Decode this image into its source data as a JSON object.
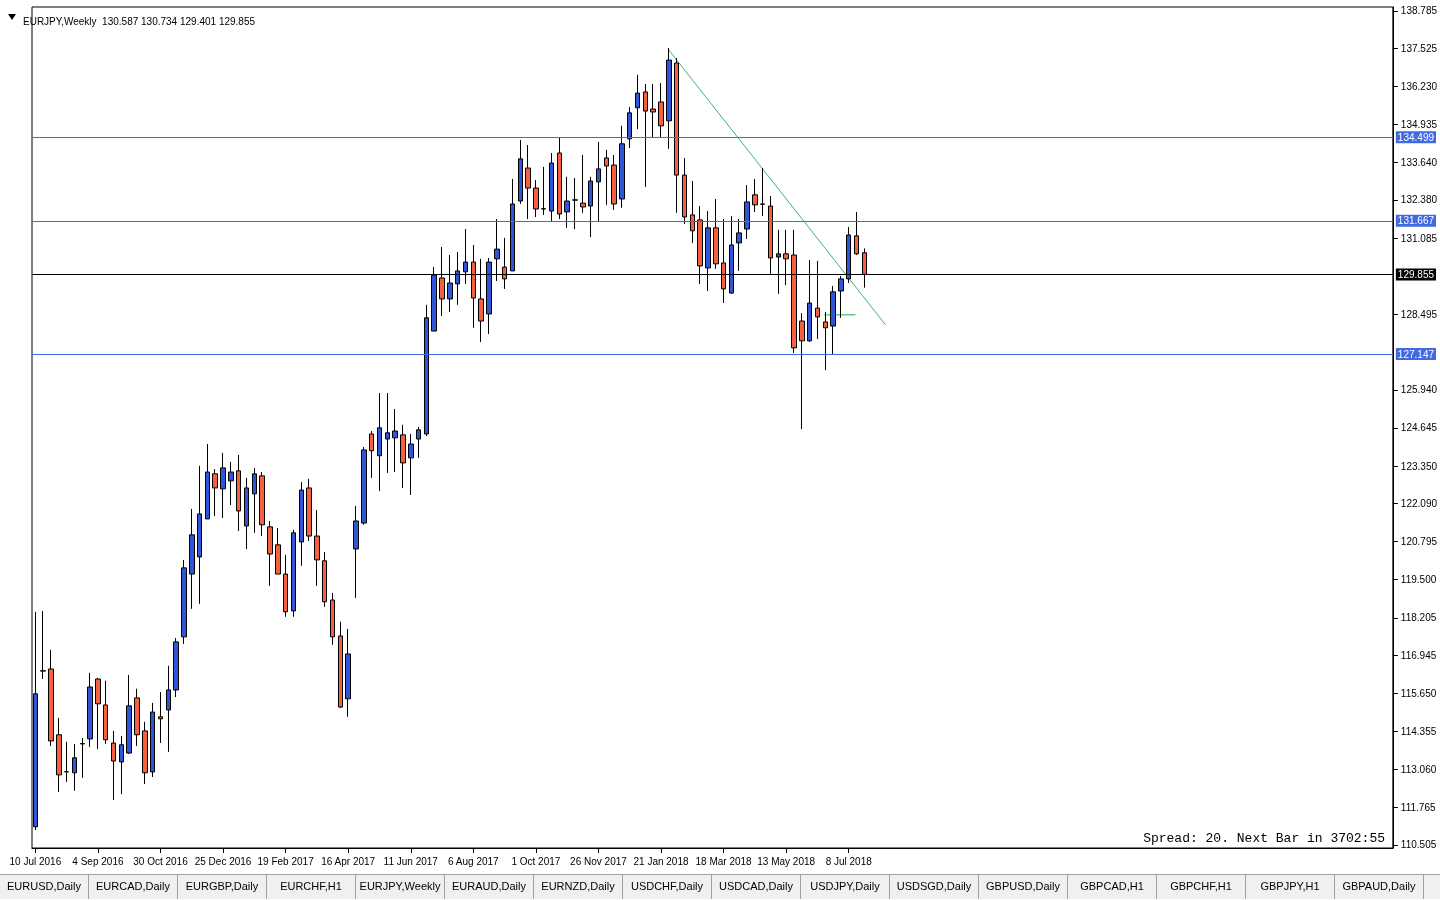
{
  "chart_data": {
    "type": "candlestick",
    "title": "EURJPY,Weekly  130.587 130.734 129.401 129.855",
    "series": [
      {
        "x": [
          "2016-07-10",
          "2016-07-17",
          "2016-07-24",
          "2016-07-31",
          "2016-08-07",
          "2016-08-14",
          "2016-08-21",
          "2016-08-28",
          "2016-09-04",
          "2016-09-11",
          "2016-09-18",
          "2016-09-25",
          "2016-10-02",
          "2016-10-09",
          "2016-10-16",
          "2016-10-23",
          "2016-10-30",
          "2016-11-06",
          "2016-11-13",
          "2016-11-20",
          "2016-11-27",
          "2016-12-04",
          "2016-12-11",
          "2016-12-18",
          "2016-12-25",
          "2017-01-01",
          "2017-01-08",
          "2017-01-15",
          "2017-01-22",
          "2017-01-29",
          "2017-02-05",
          "2017-02-12",
          "2017-02-19",
          "2017-02-26",
          "2017-03-05",
          "2017-03-12",
          "2017-03-19",
          "2017-03-26",
          "2017-04-02",
          "2017-04-09",
          "2017-04-16",
          "2017-04-23",
          "2017-04-30",
          "2017-05-07",
          "2017-05-14",
          "2017-05-21",
          "2017-05-28",
          "2017-06-04",
          "2017-06-11",
          "2017-06-18",
          "2017-06-25",
          "2017-07-02",
          "2017-07-09",
          "2017-07-16",
          "2017-07-23",
          "2017-07-30",
          "2017-08-06",
          "2017-08-13",
          "2017-08-20",
          "2017-08-27",
          "2017-09-03",
          "2017-09-10",
          "2017-09-17",
          "2017-09-24",
          "2017-10-01",
          "2017-10-08",
          "2017-10-15",
          "2017-10-22",
          "2017-10-29",
          "2017-11-05",
          "2017-11-12",
          "2017-11-19",
          "2017-11-26",
          "2017-12-03",
          "2017-12-10",
          "2017-12-17",
          "2017-12-24",
          "2017-12-31",
          "2018-01-07",
          "2018-01-14",
          "2018-01-21",
          "2018-01-28",
          "2018-02-04",
          "2018-02-11",
          "2018-02-18",
          "2018-02-25",
          "2018-03-04",
          "2018-03-11",
          "2018-03-18",
          "2018-03-25",
          "2018-04-01",
          "2018-04-08",
          "2018-04-15",
          "2018-04-22",
          "2018-04-29",
          "2018-05-06",
          "2018-05-13",
          "2018-05-20",
          "2018-05-27",
          "2018-06-03",
          "2018-06-10",
          "2018-06-17",
          "2018-06-24",
          "2018-07-01",
          "2018-07-08",
          "2018-07-15",
          "2018-07-22"
        ],
        "ohlc": [
          [
            111.12,
            118.41,
            111.01,
            115.63
          ],
          [
            116.4,
            118.44,
            116.13,
            116.41
          ],
          [
            116.47,
            117.12,
            113.86,
            114.03
          ],
          [
            114.24,
            114.81,
            112.3,
            112.88
          ],
          [
            112.98,
            114.0,
            112.64,
            112.99
          ],
          [
            112.95,
            113.93,
            112.34,
            113.46
          ],
          [
            113.93,
            114.13,
            112.78,
            113.94
          ],
          [
            114.1,
            116.34,
            113.83,
            115.86
          ],
          [
            116.13,
            116.17,
            113.76,
            115.29
          ],
          [
            115.25,
            116.07,
            113.93,
            114.07
          ],
          [
            113.96,
            114.37,
            112.03,
            113.35
          ],
          [
            113.32,
            114.2,
            112.23,
            113.9
          ],
          [
            113.62,
            116.27,
            113.59,
            115.22
          ],
          [
            115.49,
            115.8,
            113.86,
            114.24
          ],
          [
            114.37,
            114.68,
            112.57,
            112.95
          ],
          [
            112.98,
            115.32,
            112.81,
            115.01
          ],
          [
            114.85,
            115.69,
            113.96,
            114.78
          ],
          [
            115.08,
            116.58,
            113.66,
            115.76
          ],
          [
            115.76,
            117.52,
            115.52,
            117.39
          ],
          [
            117.56,
            120.17,
            117.32,
            119.9
          ],
          [
            119.69,
            121.9,
            118.51,
            121.02
          ],
          [
            120.27,
            123.36,
            118.68,
            121.73
          ],
          [
            121.56,
            124.1,
            121.56,
            123.15
          ],
          [
            123.09,
            123.25,
            121.66,
            122.61
          ],
          [
            122.58,
            123.8,
            121.59,
            123.29
          ],
          [
            122.85,
            123.49,
            122.03,
            123.15
          ],
          [
            123.19,
            123.73,
            121.15,
            121.83
          ],
          [
            121.32,
            122.95,
            120.54,
            122.61
          ],
          [
            122.41,
            123.29,
            121.09,
            123.09
          ],
          [
            123.02,
            123.15,
            120.98,
            121.36
          ],
          [
            121.29,
            121.49,
            119.29,
            120.37
          ],
          [
            120.68,
            121.25,
            119.69,
            119.69
          ],
          [
            119.69,
            120.34,
            118.24,
            118.41
          ],
          [
            118.44,
            121.19,
            118.24,
            121.09
          ],
          [
            120.78,
            122.81,
            119.97,
            122.54
          ],
          [
            122.61,
            122.92,
            120.81,
            120.98
          ],
          [
            120.98,
            121.86,
            119.29,
            120.17
          ],
          [
            120.14,
            120.44,
            118.58,
            118.75
          ],
          [
            118.81,
            119.05,
            117.29,
            117.56
          ],
          [
            117.59,
            118.07,
            115.15,
            115.18
          ],
          [
            115.46,
            117.83,
            114.85,
            116.98
          ],
          [
            120.54,
            122.0,
            118.88,
            121.49
          ],
          [
            121.42,
            124.0,
            121.36,
            123.9
          ],
          [
            124.44,
            124.54,
            122.95,
            123.87
          ],
          [
            123.7,
            125.83,
            122.51,
            124.65
          ],
          [
            124.27,
            125.83,
            123.12,
            124.48
          ],
          [
            124.31,
            125.29,
            123.15,
            124.54
          ],
          [
            124.41,
            124.75,
            122.61,
            123.46
          ],
          [
            123.63,
            124.44,
            122.37,
            124.1
          ],
          [
            124.27,
            124.68,
            123.63,
            124.58
          ],
          [
            124.44,
            128.82,
            124.37,
            128.38
          ],
          [
            127.93,
            130.1,
            127.93,
            129.83
          ],
          [
            129.73,
            130.78,
            128.44,
            129.02
          ],
          [
            129.02,
            130.51,
            128.58,
            129.56
          ],
          [
            129.53,
            130.61,
            128.82,
            129.97
          ],
          [
            129.94,
            131.39,
            129.53,
            130.27
          ],
          [
            130.27,
            130.85,
            128.04,
            129.05
          ],
          [
            129.02,
            130.38,
            127.56,
            128.27
          ],
          [
            128.51,
            130.41,
            127.83,
            130.27
          ],
          [
            130.38,
            131.73,
            129.63,
            130.71
          ],
          [
            130.1,
            131.09,
            129.36,
            129.7
          ],
          [
            129.97,
            133.09,
            129.97,
            132.24
          ],
          [
            132.34,
            134.41,
            132.24,
            133.77
          ],
          [
            133.46,
            134.24,
            131.73,
            132.78
          ],
          [
            132.78,
            133.05,
            131.8,
            132.07
          ],
          [
            132.07,
            133.5,
            131.87,
            132.08
          ],
          [
            132.0,
            133.97,
            131.66,
            133.63
          ],
          [
            133.97,
            134.48,
            131.73,
            131.9
          ],
          [
            131.97,
            133.16,
            131.43,
            132.34
          ],
          [
            132.38,
            133.12,
            131.39,
            132.37
          ],
          [
            132.27,
            133.9,
            131.94,
            132.14
          ],
          [
            132.17,
            133.16,
            131.12,
            133.02
          ],
          [
            132.99,
            134.34,
            131.66,
            133.43
          ],
          [
            133.8,
            134.07,
            132.21,
            133.53
          ],
          [
            133.56,
            133.9,
            132.04,
            132.24
          ],
          [
            132.41,
            134.89,
            132.11,
            134.28
          ],
          [
            134.45,
            135.53,
            134.14,
            135.33
          ],
          [
            135.5,
            136.62,
            134.78,
            136.0
          ],
          [
            136.04,
            136.31,
            132.82,
            135.39
          ],
          [
            135.46,
            136.31,
            134.51,
            135.36
          ],
          [
            135.7,
            136.34,
            134.51,
            134.89
          ],
          [
            135.06,
            137.53,
            134.11,
            137.12
          ],
          [
            137.02,
            137.19,
            131.94,
            133.22
          ],
          [
            133.22,
            133.8,
            131.56,
            131.8
          ],
          [
            131.87,
            133.02,
            130.92,
            131.33
          ],
          [
            131.7,
            132.17,
            129.53,
            130.14
          ],
          [
            130.07,
            132.0,
            129.29,
            131.43
          ],
          [
            131.43,
            132.41,
            130.04,
            130.21
          ],
          [
            130.24,
            131.73,
            128.88,
            129.36
          ],
          [
            129.22,
            131.83,
            129.19,
            130.85
          ],
          [
            130.92,
            131.73,
            129.97,
            131.26
          ],
          [
            131.39,
            132.88,
            131.05,
            132.31
          ],
          [
            132.55,
            133.09,
            131.97,
            132.21
          ],
          [
            132.24,
            133.46,
            131.83,
            132.23
          ],
          [
            132.17,
            132.51,
            129.87,
            130.41
          ],
          [
            130.44,
            131.36,
            129.19,
            130.55
          ],
          [
            130.55,
            131.36,
            129.49,
            130.38
          ],
          [
            130.51,
            131.36,
            127.19,
            127.36
          ],
          [
            128.27,
            128.54,
            124.61,
            127.6
          ],
          [
            127.6,
            130.34,
            127.56,
            128.88
          ],
          [
            128.71,
            130.31,
            127.66,
            128.41
          ],
          [
            128.24,
            128.58,
            126.61,
            128.04
          ],
          [
            128.1,
            129.46,
            127.15,
            129.26
          ],
          [
            129.29,
            129.8,
            128.38,
            129.7
          ],
          [
            129.7,
            131.46,
            129.56,
            131.19
          ],
          [
            131.16,
            131.97,
            130.51,
            130.55
          ],
          [
            130.587,
            130.734,
            129.401,
            129.855
          ]
        ]
      },
      {
        "type": "line",
        "x": [
          "2018-01-28",
          "2018-08-10"
        ],
        "values": [
          137.46,
          128.14
        ],
        "color": "#3cb371"
      },
      {
        "type": "line",
        "x": [
          "2018-06-16",
          "2018-07-14"
        ],
        "values": [
          128.48,
          128.48
        ],
        "color": "#22aa44"
      }
    ],
    "xlim": [
      "2016-07-07",
      "2019-11-07"
    ],
    "xticks": [
      {
        "value": "2016-07-10",
        "label": "10 Jul 2016"
      },
      {
        "value": "2016-09-04",
        "label": "4 Sep 2016"
      },
      {
        "value": "2016-10-30",
        "label": "30 Oct 2016"
      },
      {
        "value": "2016-12-25",
        "label": "25 Dec 2016"
      },
      {
        "value": "2017-02-19",
        "label": "19 Feb 2017"
      },
      {
        "value": "2017-04-16",
        "label": "16 Apr 2017"
      },
      {
        "value": "2017-06-11",
        "label": "11 Jun 2017"
      },
      {
        "value": "2017-08-06",
        "label": "6 Aug 2017"
      },
      {
        "value": "2017-10-01",
        "label": "1 Oct 2017"
      },
      {
        "value": "2017-11-26",
        "label": "26 Nov 2017"
      },
      {
        "value": "2018-01-21",
        "label": "21 Jan 2018"
      },
      {
        "value": "2018-03-18",
        "label": "18 Mar 2018"
      },
      {
        "value": "2018-05-13",
        "label": "13 May 2018"
      },
      {
        "value": "2018-07-08",
        "label": "8 Jul 2018"
      }
    ],
    "ylim": [
      110.4,
      138.92
    ],
    "yticks": [
      {
        "value": 110.505,
        "label": "110.505"
      },
      {
        "value": 111.765,
        "label": "111.765"
      },
      {
        "value": 113.06,
        "label": "113.060"
      },
      {
        "value": 114.355,
        "label": "114.355"
      },
      {
        "value": 115.65,
        "label": "115.650"
      },
      {
        "value": 116.945,
        "label": "116.945"
      },
      {
        "value": 118.205,
        "label": "118.205"
      },
      {
        "value": 119.5,
        "label": "119.500"
      },
      {
        "value": 120.795,
        "label": "120.795"
      },
      {
        "value": 122.09,
        "label": "122.090"
      },
      {
        "value": 123.35,
        "label": "123.350"
      },
      {
        "value": 124.645,
        "label": "124.645"
      },
      {
        "value": 125.94,
        "label": "125.940"
      },
      {
        "value": 128.495,
        "label": "128.495"
      },
      {
        "value": 131.085,
        "label": "131.085"
      },
      {
        "value": 132.38,
        "label": "132.380"
      },
      {
        "value": 133.64,
        "label": "133.640"
      },
      {
        "value": 134.935,
        "label": "134.935"
      },
      {
        "value": 136.23,
        "label": "136.230"
      },
      {
        "value": 137.525,
        "label": "137.525"
      },
      {
        "value": 138.785,
        "label": "138.785"
      }
    ],
    "ref_lines": [
      {
        "axis": "y",
        "value": 134.499,
        "label": "134.499",
        "color": "#4169e1"
      },
      {
        "axis": "y",
        "value": 131.667,
        "label": "131.667",
        "color": "#4169e1"
      },
      {
        "axis": "y",
        "value": 129.855,
        "label": "129.855",
        "color": "#000000"
      },
      {
        "axis": "y",
        "value": 127.147,
        "label": "127.147",
        "color": "#4169e1"
      }
    ],
    "annotations": [
      "Spread: 20. Next Bar in 3702:55",
      "EURUSD,Daily",
      "EURCAD,Daily",
      "EURGBP,Daily",
      "EURCHF,H1",
      "EURJPY,Weekly",
      "EURAUD,Daily",
      "EURNZD,Daily",
      "USDCHF,Daily",
      "USDCAD,Daily",
      "USDJPY,Daily",
      "USDSGD,Daily",
      "GBPUSD,Daily",
      "GBPCAD,H1",
      "GBPCHF,H1",
      "GBPJPY,H1",
      "GBPAUD,Daily"
    ],
    "grid": false
  }
}
